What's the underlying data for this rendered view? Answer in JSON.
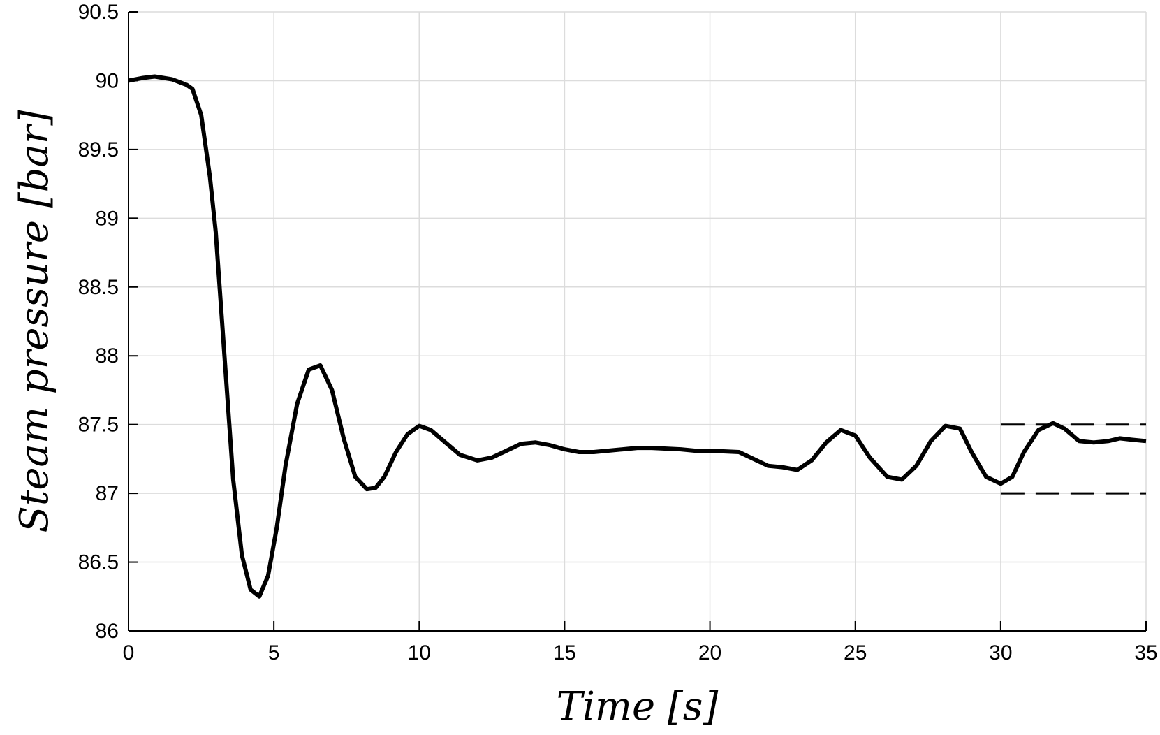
{
  "chart_data": {
    "type": "line",
    "title": "",
    "xlabel": "Time [s]",
    "ylabel": "Steam pressure [bar]",
    "xlim": [
      0,
      35
    ],
    "ylim": [
      86,
      90.5
    ],
    "xticks": [
      0,
      5,
      10,
      15,
      20,
      25,
      30,
      35
    ],
    "xtick_labels": [
      "0",
      "5",
      "10",
      "15",
      "20",
      "25",
      "30",
      "35"
    ],
    "yticks": [
      86,
      86.5,
      87,
      87.5,
      88,
      88.5,
      89,
      89.5,
      90,
      90.5
    ],
    "ytick_labels": [
      "86",
      "86.5",
      "87",
      "87.5",
      "88",
      "88.5",
      "89",
      "89.5",
      "90",
      "90.5"
    ],
    "grid": true,
    "colors": {
      "line": "#000000",
      "grid": "#dcdcdc",
      "axis": "#000000"
    },
    "series": [
      {
        "style": "solid",
        "x": [
          0,
          0.5,
          0.9,
          1.5,
          2.0,
          2.2,
          2.5,
          2.8,
          3.0,
          3.3,
          3.6,
          3.9,
          4.2,
          4.5,
          4.8,
          5.1,
          5.4,
          5.8,
          6.2,
          6.6,
          7.0,
          7.4,
          7.8,
          8.2,
          8.5,
          8.8,
          9.2,
          9.6,
          10.0,
          10.4,
          10.9,
          11.4,
          12.0,
          12.5,
          13.0,
          13.5,
          14.0,
          14.5,
          15.0,
          15.5,
          16.0,
          17.0,
          17.5,
          18.0,
          19.0,
          19.5,
          20.0,
          21.0,
          22.0,
          22.5,
          23.0,
          23.5,
          24.0,
          24.5,
          25.0,
          25.5,
          26.1,
          26.6,
          27.1,
          27.6,
          28.1,
          28.6,
          29.0,
          29.5,
          30.0,
          30.4,
          30.8,
          31.3,
          31.8,
          32.2,
          32.7,
          33.2,
          33.7,
          34.1,
          34.5,
          35.0
        ],
        "y": [
          90.0,
          90.02,
          90.03,
          90.01,
          89.97,
          89.94,
          89.75,
          89.3,
          88.9,
          88.0,
          87.1,
          86.55,
          86.3,
          86.25,
          86.4,
          86.75,
          87.2,
          87.65,
          87.9,
          87.93,
          87.75,
          87.4,
          87.12,
          87.03,
          87.04,
          87.12,
          87.3,
          87.43,
          87.49,
          87.46,
          87.37,
          87.28,
          87.24,
          87.26,
          87.31,
          87.36,
          87.37,
          87.35,
          87.32,
          87.3,
          87.3,
          87.32,
          87.33,
          87.33,
          87.32,
          87.31,
          87.31,
          87.3,
          87.2,
          87.19,
          87.17,
          87.24,
          87.37,
          87.46,
          87.42,
          87.26,
          87.12,
          87.1,
          87.2,
          87.38,
          87.49,
          87.47,
          87.3,
          87.12,
          87.07,
          87.12,
          87.3,
          87.46,
          87.51,
          87.47,
          87.38,
          87.37,
          87.38,
          87.4,
          87.39,
          87.38
        ]
      },
      {
        "style": "dashed",
        "x": [
          30,
          35
        ],
        "y": [
          87.5,
          87.5
        ]
      },
      {
        "style": "dashed",
        "x": [
          30,
          35
        ],
        "y": [
          87.0,
          87.0
        ]
      }
    ]
  }
}
